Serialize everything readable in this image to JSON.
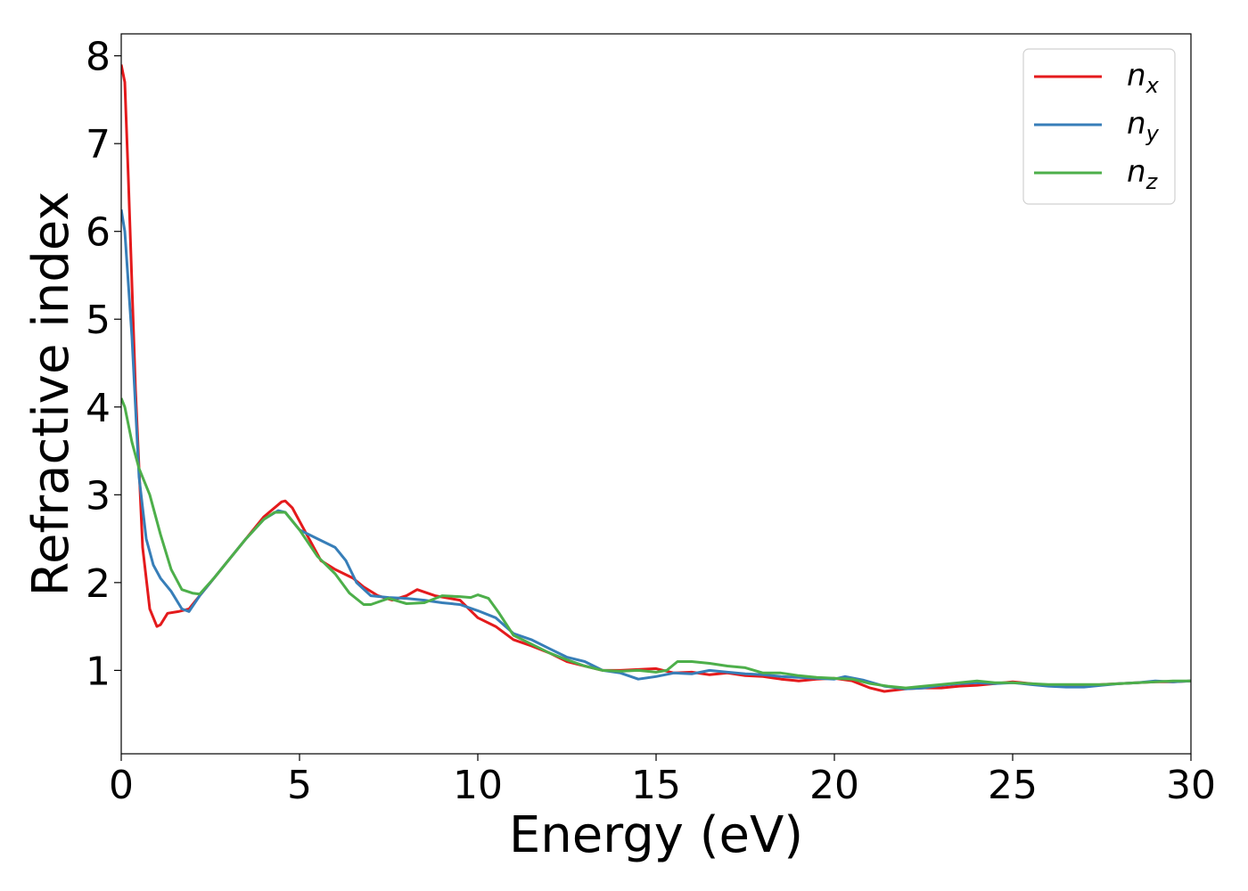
{
  "chart_data": {
    "type": "line",
    "xlabel": "Energy (eV)",
    "ylabel": "Refractive index",
    "xlim": [
      0,
      30
    ],
    "ylim": [
      0.05,
      8.25
    ],
    "xticks": [
      0,
      5,
      10,
      15,
      20,
      25,
      30
    ],
    "yticks": [
      1,
      2,
      3,
      4,
      5,
      6,
      7,
      8
    ],
    "xtick_labels": [
      "0",
      "5",
      "10",
      "15",
      "20",
      "25",
      "30"
    ],
    "ytick_labels": [
      "1",
      "2",
      "3",
      "4",
      "5",
      "6",
      "7",
      "8"
    ],
    "grid": false,
    "legend_position": "top-right",
    "series": [
      {
        "name": "n_x",
        "name_base": "n",
        "name_sub": "x",
        "color": "#e41a1c",
        "x": [
          0,
          0.1,
          0.2,
          0.4,
          0.6,
          0.8,
          1.0,
          1.1,
          1.3,
          1.6,
          1.9,
          2.2,
          2.6,
          3.0,
          3.5,
          4.0,
          4.5,
          4.6,
          4.8,
          5.2,
          5.6,
          6.0,
          6.5,
          6.8,
          7.2,
          7.6,
          8.0,
          8.3,
          8.8,
          9.5,
          10.0,
          10.5,
          11.0,
          11.5,
          12.0,
          12.5,
          13.0,
          13.5,
          14.0,
          14.5,
          15.0,
          15.5,
          16.0,
          16.5,
          17.0,
          17.5,
          18.0,
          18.5,
          19.0,
          19.5,
          20.0,
          20.5,
          21.0,
          21.4,
          22.0,
          22.5,
          23.0,
          23.5,
          24.0,
          24.5,
          25.0,
          25.5,
          26.0,
          26.5,
          27.0,
          27.5,
          28.0,
          28.5,
          29.0,
          29.5,
          30.0
        ],
        "y": [
          7.9,
          7.7,
          6.6,
          4.2,
          2.4,
          1.7,
          1.5,
          1.52,
          1.65,
          1.67,
          1.7,
          1.85,
          2.05,
          2.25,
          2.5,
          2.75,
          2.92,
          2.93,
          2.85,
          2.55,
          2.25,
          2.15,
          2.05,
          1.95,
          1.85,
          1.8,
          1.85,
          1.92,
          1.85,
          1.8,
          1.6,
          1.5,
          1.35,
          1.28,
          1.2,
          1.1,
          1.05,
          1.0,
          1.0,
          1.01,
          1.02,
          0.97,
          0.98,
          0.95,
          0.97,
          0.94,
          0.93,
          0.9,
          0.88,
          0.9,
          0.91,
          0.88,
          0.8,
          0.76,
          0.79,
          0.8,
          0.8,
          0.82,
          0.83,
          0.85,
          0.87,
          0.85,
          0.83,
          0.83,
          0.82,
          0.84,
          0.85,
          0.86,
          0.87,
          0.87,
          0.88
        ]
      },
      {
        "name": "n_y",
        "name_base": "n",
        "name_sub": "y",
        "color": "#377eb8",
        "x": [
          0,
          0.1,
          0.3,
          0.5,
          0.7,
          0.9,
          1.1,
          1.4,
          1.7,
          1.9,
          2.2,
          2.6,
          3.0,
          3.5,
          4.0,
          4.4,
          4.6,
          5.0,
          5.5,
          6.0,
          6.3,
          6.6,
          7.0,
          7.5,
          8.0,
          8.5,
          9.0,
          9.5,
          10.0,
          10.5,
          11.0,
          11.5,
          12.0,
          12.5,
          13.0,
          13.5,
          14.0,
          14.5,
          15.0,
          15.5,
          16.0,
          16.5,
          17.0,
          17.5,
          18.0,
          18.5,
          19.0,
          19.5,
          20.0,
          20.3,
          20.8,
          21.4,
          22.0,
          22.5,
          23.0,
          23.5,
          24.0,
          24.5,
          25.0,
          25.5,
          26.0,
          26.5,
          27.0,
          27.5,
          28.0,
          28.5,
          29.0,
          29.5,
          30.0
        ],
        "y": [
          6.25,
          6.0,
          4.8,
          3.2,
          2.5,
          2.2,
          2.05,
          1.9,
          1.7,
          1.67,
          1.85,
          2.05,
          2.25,
          2.5,
          2.72,
          2.82,
          2.8,
          2.6,
          2.5,
          2.4,
          2.25,
          2.0,
          1.85,
          1.83,
          1.82,
          1.8,
          1.77,
          1.75,
          1.68,
          1.6,
          1.42,
          1.35,
          1.25,
          1.15,
          1.1,
          1.0,
          0.97,
          0.9,
          0.93,
          0.97,
          0.96,
          1.0,
          0.98,
          0.96,
          0.95,
          0.93,
          0.92,
          0.91,
          0.9,
          0.93,
          0.89,
          0.82,
          0.79,
          0.8,
          0.83,
          0.85,
          0.86,
          0.85,
          0.86,
          0.84,
          0.82,
          0.81,
          0.81,
          0.83,
          0.85,
          0.86,
          0.88,
          0.87,
          0.88
        ]
      },
      {
        "name": "n_z",
        "name_base": "n",
        "name_sub": "z",
        "color": "#4daf4a",
        "x": [
          0,
          0.1,
          0.3,
          0.5,
          0.8,
          1.1,
          1.4,
          1.7,
          2.0,
          2.2,
          2.6,
          3.0,
          3.5,
          4.0,
          4.3,
          4.6,
          5.0,
          5.5,
          6.0,
          6.4,
          6.8,
          7.0,
          7.5,
          8.0,
          8.5,
          9.0,
          9.5,
          9.8,
          10.0,
          10.3,
          10.6,
          11.0,
          11.5,
          12.0,
          12.5,
          13.0,
          13.5,
          14.0,
          14.5,
          15.0,
          15.3,
          15.6,
          16.0,
          16.5,
          17.0,
          17.5,
          18.0,
          18.5,
          19.0,
          19.5,
          20.0,
          20.5,
          21.0,
          21.5,
          22.0,
          22.5,
          23.0,
          23.5,
          24.0,
          24.5,
          25.0,
          25.5,
          26.0,
          26.5,
          27.0,
          27.5,
          28.0,
          28.5,
          29.0,
          29.5,
          30.0
        ],
        "y": [
          4.1,
          4.0,
          3.6,
          3.3,
          3.0,
          2.55,
          2.15,
          1.92,
          1.88,
          1.87,
          2.05,
          2.25,
          2.5,
          2.72,
          2.8,
          2.8,
          2.6,
          2.3,
          2.1,
          1.88,
          1.75,
          1.75,
          1.82,
          1.76,
          1.77,
          1.85,
          1.84,
          1.83,
          1.86,
          1.82,
          1.65,
          1.4,
          1.3,
          1.2,
          1.12,
          1.05,
          1.0,
          0.99,
          1.0,
          0.98,
          1.0,
          1.1,
          1.1,
          1.08,
          1.05,
          1.03,
          0.97,
          0.97,
          0.94,
          0.92,
          0.91,
          0.9,
          0.85,
          0.82,
          0.8,
          0.82,
          0.84,
          0.86,
          0.88,
          0.86,
          0.86,
          0.85,
          0.84,
          0.84,
          0.84,
          0.84,
          0.85,
          0.86,
          0.87,
          0.88,
          0.88
        ]
      }
    ]
  }
}
